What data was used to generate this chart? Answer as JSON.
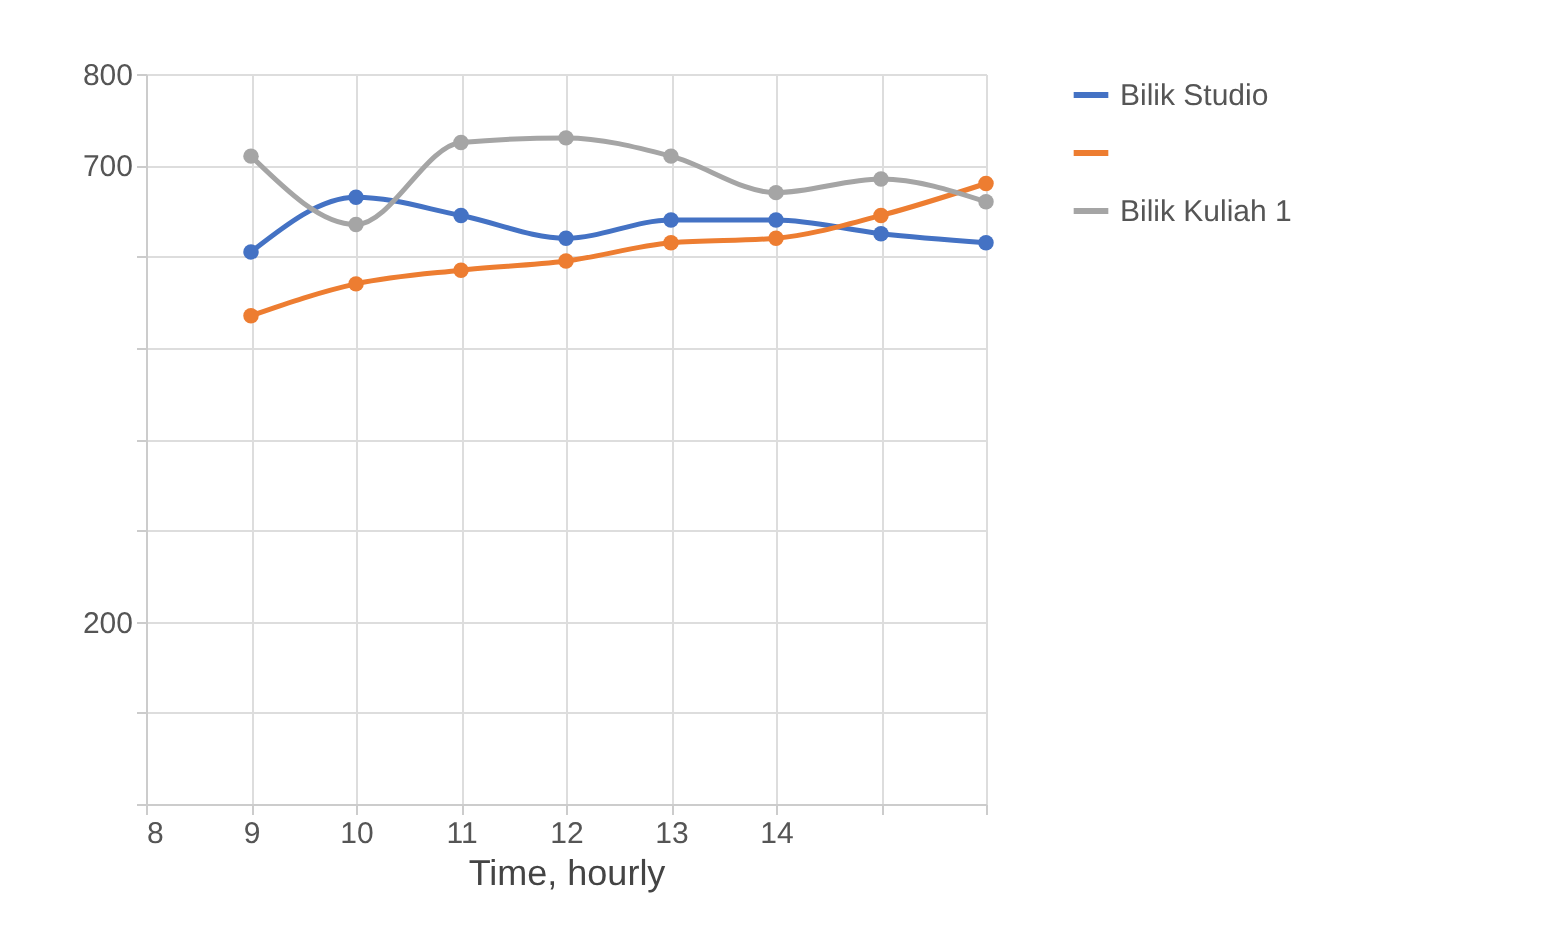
{
  "chart_data": {
    "type": "line",
    "xlabel": "Time, hourly",
    "x": [
      9,
      10,
      11,
      12,
      13,
      14,
      15,
      16
    ],
    "xlim": [
      8,
      16
    ],
    "xticks": [
      8,
      9,
      10,
      11,
      12,
      13,
      14,
      {
        "value": 15,
        "label": null
      },
      {
        "value": 16,
        "label": null
      }
    ],
    "ylim": [
      0,
      800
    ],
    "yticks": [
      {
        "value": 0,
        "label": null
      },
      {
        "value": 100,
        "label": null
      },
      {
        "value": 200,
        "label": "200"
      },
      {
        "value": 300,
        "label": null
      },
      {
        "value": 400,
        "label": null
      },
      {
        "value": 500,
        "label": null
      },
      {
        "value": 600,
        "label": null
      },
      700,
      {
        "value": 800,
        "label": "800"
      }
    ],
    "series": [
      {
        "name": "Bilik Studio",
        "color": "#4472c4",
        "values": [
          605,
          665,
          645,
          620,
          640,
          640,
          625,
          615
        ]
      },
      {
        "color": "#ed7d31",
        "values": [
          535,
          570,
          585,
          595,
          615,
          620,
          645,
          680
        ]
      },
      {
        "name": "Bilik Kuliah 1",
        "color": "#a5a5a5",
        "values": [
          710,
          635,
          725,
          730,
          710,
          670,
          685,
          660
        ]
      }
    ],
    "grid": true,
    "legend": "right",
    "marker": "circle"
  }
}
